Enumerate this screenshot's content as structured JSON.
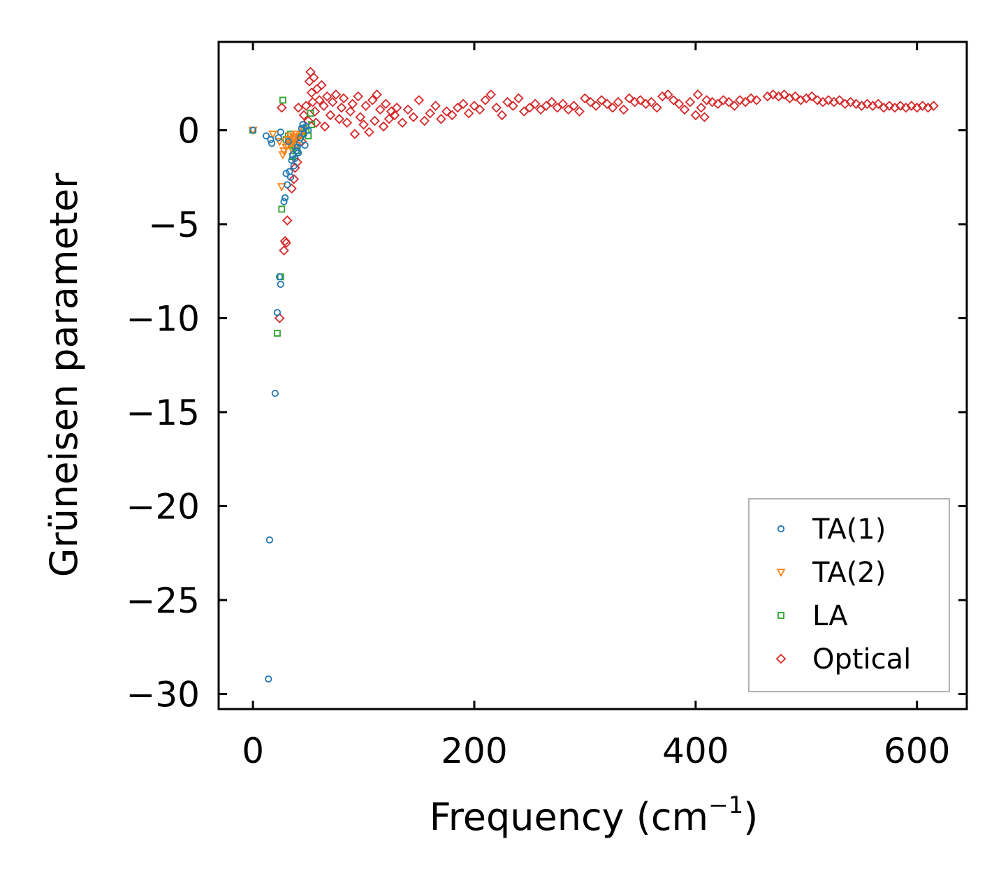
{
  "chart_data": {
    "type": "scatter",
    "title": "",
    "xlabel": "Frequency (cm",
    "xlabel_sup": "−1",
    "xlabel_close": ")",
    "ylabel": "Grüneisen parameter",
    "xlim": [
      -31,
      645
    ],
    "ylim": [
      -30.8,
      4.7
    ],
    "xticks": [
      0,
      200,
      400,
      600
    ],
    "xtick_labels": [
      "0",
      "200",
      "400",
      "600"
    ],
    "yticks": [
      0,
      -5,
      -10,
      -15,
      -20,
      -25,
      -30
    ],
    "ytick_labels": [
      "0",
      "−5",
      "−10",
      "−15",
      "−20",
      "−25",
      "−30"
    ],
    "grid": false,
    "legend_position": "lower-right",
    "series": [
      {
        "name": "TA(1)",
        "marker": "circle",
        "color": "#1f77b4",
        "points": [
          [
            0,
            0
          ],
          [
            12,
            -0.3
          ],
          [
            14,
            -29.2
          ],
          [
            15,
            -21.8
          ],
          [
            16,
            -0.5
          ],
          [
            17,
            -0.7
          ],
          [
            20,
            -14
          ],
          [
            22,
            -9.7
          ],
          [
            23,
            -0.4
          ],
          [
            24,
            -7.8
          ],
          [
            25,
            -8.2
          ],
          [
            25,
            -0.1
          ],
          [
            28,
            -3.8
          ],
          [
            29,
            -3.6
          ],
          [
            30,
            -2.3
          ],
          [
            31,
            -2.9
          ],
          [
            32,
            -0.6
          ],
          [
            33,
            -2.2
          ],
          [
            34,
            -2.5
          ],
          [
            35,
            -1.6
          ],
          [
            36,
            -1.3
          ],
          [
            37,
            -1.9
          ],
          [
            38,
            -1.5
          ],
          [
            39,
            -1.1
          ],
          [
            40,
            -0.9
          ],
          [
            41,
            -1.2
          ],
          [
            42,
            -0.7
          ],
          [
            43,
            -0.4
          ],
          [
            44,
            0.1
          ],
          [
            45,
            0.3
          ],
          [
            46,
            -0.2
          ],
          [
            47,
            -0.8
          ],
          [
            48,
            0.2
          ],
          [
            50,
            0
          ]
        ]
      },
      {
        "name": "TA(2)",
        "marker": "triangle-down",
        "color": "#ff7f0e",
        "points": [
          [
            0,
            0
          ],
          [
            18,
            -0.2
          ],
          [
            24,
            -0.6
          ],
          [
            26,
            -3
          ],
          [
            27,
            -1.3
          ],
          [
            28,
            -1.1
          ],
          [
            30,
            -0.9
          ],
          [
            31,
            -0.8
          ],
          [
            32,
            -0.5
          ],
          [
            33,
            -0.7
          ],
          [
            34,
            -0.3
          ],
          [
            35,
            -1
          ],
          [
            36,
            -0.6
          ],
          [
            37,
            -0.4
          ],
          [
            38,
            -0.5
          ],
          [
            39,
            -0.2
          ],
          [
            40,
            -0.8
          ],
          [
            42,
            -0.3
          ],
          [
            44,
            -0.2
          ],
          [
            46,
            0
          ]
        ]
      },
      {
        "name": "LA",
        "marker": "square",
        "color": "#2ca02c",
        "points": [
          [
            0,
            0
          ],
          [
            22,
            -10.8
          ],
          [
            25,
            -7.8
          ],
          [
            26,
            -4.2
          ],
          [
            27,
            1.6
          ],
          [
            30,
            -0.5
          ],
          [
            32,
            -0.3
          ],
          [
            34,
            -0.2
          ],
          [
            35,
            -0.8
          ],
          [
            36,
            -1.4
          ],
          [
            38,
            -0.9
          ],
          [
            40,
            -1.1
          ],
          [
            42,
            -0.4
          ],
          [
            44,
            -0.2
          ],
          [
            46,
            0.1
          ],
          [
            48,
            0
          ],
          [
            50,
            -0.3
          ],
          [
            52,
            0.9
          ],
          [
            53,
            0.3
          ]
        ]
      },
      {
        "name": "Optical",
        "marker": "diamond",
        "color": "#d62728",
        "points": [
          [
            24,
            -10
          ],
          [
            26,
            1.2
          ],
          [
            28,
            -6.4
          ],
          [
            29,
            -5.9
          ],
          [
            30,
            -6
          ],
          [
            31,
            -4.8
          ],
          [
            35,
            -3.1
          ],
          [
            37,
            -2.6
          ],
          [
            38,
            -2
          ],
          [
            40,
            -1.7
          ],
          [
            41,
            1.2
          ],
          [
            44,
            -0.6
          ],
          [
            46,
            0.8
          ],
          [
            48,
            1.3
          ],
          [
            50,
            0.5
          ],
          [
            51,
            2.6
          ],
          [
            52,
            3.1
          ],
          [
            53,
            2
          ],
          [
            54,
            1.5
          ],
          [
            55,
            2.8
          ],
          [
            56,
            1
          ],
          [
            57,
            0.4
          ],
          [
            58,
            2.2
          ],
          [
            60,
            1.6
          ],
          [
            62,
            2.4
          ],
          [
            64,
            1.3
          ],
          [
            65,
            0.2
          ],
          [
            67,
            1.8
          ],
          [
            70,
            0.8
          ],
          [
            72,
            1.5
          ],
          [
            75,
            1.9
          ],
          [
            78,
            0.6
          ],
          [
            80,
            1.2
          ],
          [
            82,
            1.7
          ],
          [
            85,
            0.4
          ],
          [
            88,
            1
          ],
          [
            90,
            1.4
          ],
          [
            92,
            -0.2
          ],
          [
            95,
            1.8
          ],
          [
            97,
            0.7
          ],
          [
            100,
            0.3
          ],
          [
            102,
            1.3
          ],
          [
            105,
            -0.1
          ],
          [
            108,
            1.6
          ],
          [
            110,
            0.5
          ],
          [
            112,
            1.9
          ],
          [
            115,
            1.1
          ],
          [
            118,
            0.2
          ],
          [
            120,
            1.4
          ],
          [
            123,
            0.6
          ],
          [
            125,
            1
          ],
          [
            128,
            0.8
          ],
          [
            130,
            1.2
          ],
          [
            135,
            0.4
          ],
          [
            140,
            1.1
          ],
          [
            145,
            0.7
          ],
          [
            150,
            1.6
          ],
          [
            155,
            0.5
          ],
          [
            160,
            0.9
          ],
          [
            165,
            1.3
          ],
          [
            170,
            0.6
          ],
          [
            175,
            1
          ],
          [
            180,
            0.8
          ],
          [
            185,
            1.2
          ],
          [
            190,
            1.4
          ],
          [
            195,
            0.9
          ],
          [
            200,
            1.3
          ],
          [
            205,
            1.1
          ],
          [
            210,
            1.6
          ],
          [
            215,
            1.9
          ],
          [
            220,
            1.2
          ],
          [
            225,
            0.8
          ],
          [
            230,
            1.5
          ],
          [
            235,
            1.3
          ],
          [
            240,
            1.7
          ],
          [
            245,
            1
          ],
          [
            250,
            1.2
          ],
          [
            255,
            1.4
          ],
          [
            260,
            1.1
          ],
          [
            265,
            1.3
          ],
          [
            270,
            1.5
          ],
          [
            275,
            1.2
          ],
          [
            280,
            1.4
          ],
          [
            285,
            1.1
          ],
          [
            290,
            1.3
          ],
          [
            295,
            1
          ],
          [
            300,
            1.7
          ],
          [
            305,
            1.5
          ],
          [
            310,
            1.3
          ],
          [
            315,
            1.6
          ],
          [
            320,
            1.4
          ],
          [
            325,
            1.2
          ],
          [
            330,
            1.5
          ],
          [
            335,
            1.1
          ],
          [
            340,
            1.7
          ],
          [
            345,
            1.5
          ],
          [
            350,
            1.6
          ],
          [
            355,
            1.4
          ],
          [
            360,
            1.5
          ],
          [
            365,
            1.2
          ],
          [
            370,
            1.8
          ],
          [
            375,
            1.9
          ],
          [
            380,
            1.6
          ],
          [
            385,
            1.4
          ],
          [
            390,
            1.1
          ],
          [
            395,
            1.5
          ],
          [
            400,
            0.8
          ],
          [
            402,
            1.9
          ],
          [
            405,
            1.2
          ],
          [
            408,
            0.7
          ],
          [
            410,
            1.6
          ],
          [
            415,
            1.5
          ],
          [
            420,
            1.4
          ],
          [
            425,
            1.6
          ],
          [
            430,
            1.5
          ],
          [
            435,
            1.3
          ],
          [
            440,
            1.6
          ],
          [
            445,
            1.5
          ],
          [
            450,
            1.7
          ],
          [
            455,
            1.6
          ],
          [
            465,
            1.8
          ],
          [
            470,
            1.9
          ],
          [
            475,
            1.8
          ],
          [
            480,
            1.9
          ],
          [
            485,
            1.7
          ],
          [
            490,
            1.8
          ],
          [
            495,
            1.6
          ],
          [
            500,
            1.7
          ],
          [
            505,
            1.8
          ],
          [
            510,
            1.6
          ],
          [
            515,
            1.5
          ],
          [
            520,
            1.6
          ],
          [
            525,
            1.5
          ],
          [
            530,
            1.6
          ],
          [
            535,
            1.4
          ],
          [
            540,
            1.5
          ],
          [
            545,
            1.4
          ],
          [
            550,
            1.3
          ],
          [
            555,
            1.4
          ],
          [
            560,
            1.3
          ],
          [
            565,
            1.4
          ],
          [
            570,
            1.2
          ],
          [
            575,
            1.3
          ],
          [
            580,
            1.2
          ],
          [
            585,
            1.3
          ],
          [
            590,
            1.2
          ],
          [
            595,
            1.3
          ],
          [
            600,
            1.2
          ],
          [
            605,
            1.3
          ],
          [
            610,
            1.2
          ],
          [
            615,
            1.3
          ]
        ]
      }
    ]
  }
}
